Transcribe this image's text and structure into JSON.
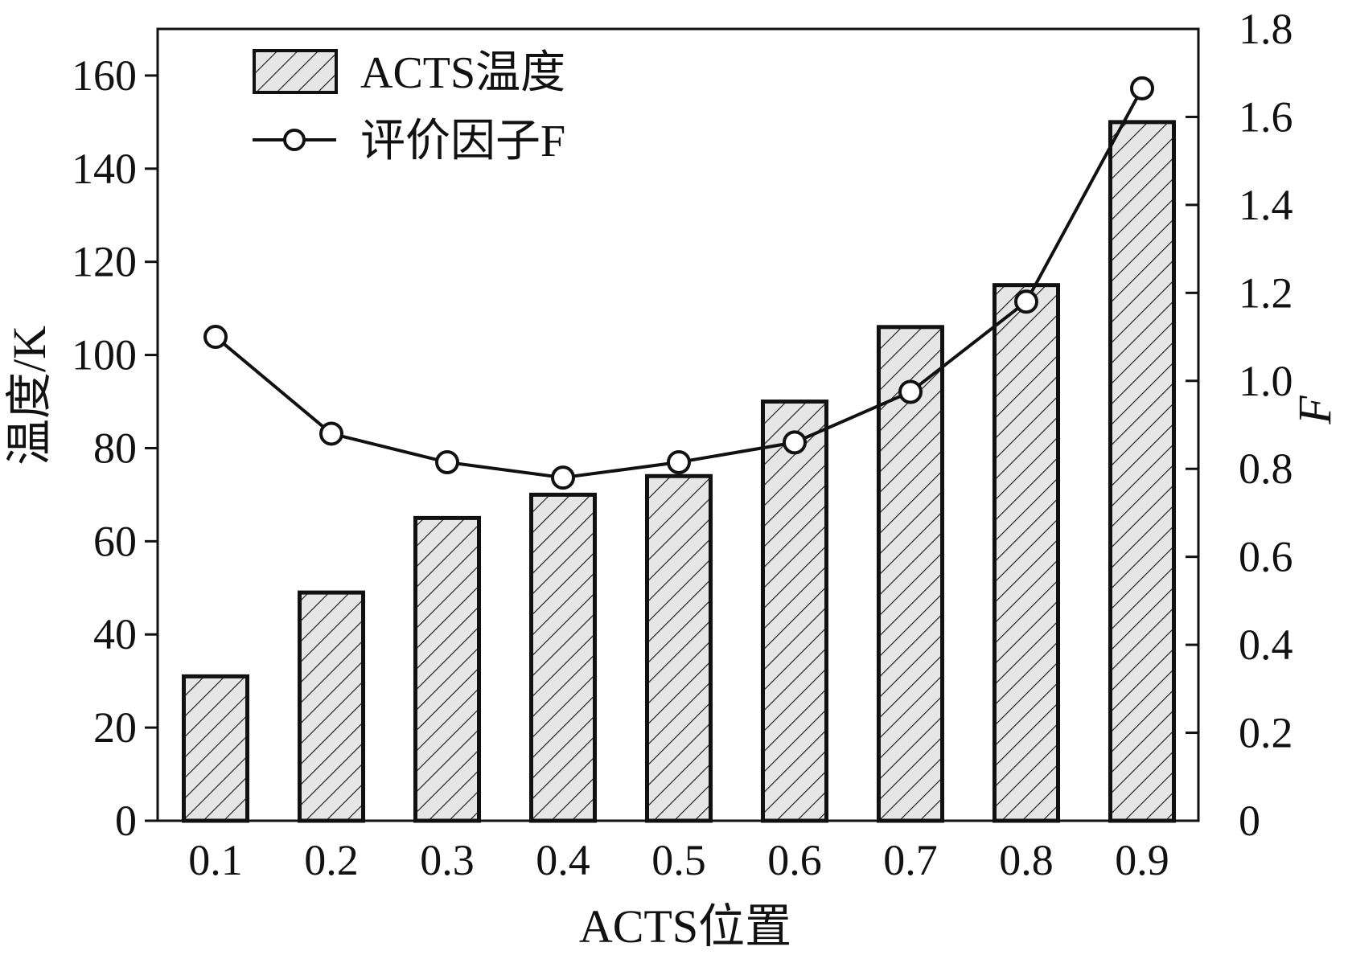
{
  "chart_data": {
    "type": "bar",
    "categories": [
      "0.1",
      "0.2",
      "0.3",
      "0.4",
      "0.5",
      "0.6",
      "0.7",
      "0.8",
      "0.9"
    ],
    "series": [
      {
        "name": "ACTS温度",
        "type": "bar",
        "axis": "left",
        "values": [
          31,
          49,
          65,
          70,
          74,
          90,
          106,
          115,
          150
        ]
      },
      {
        "name": "评价因子F",
        "type": "line",
        "axis": "right",
        "values": [
          1.1,
          0.88,
          0.815,
          0.78,
          0.815,
          0.86,
          0.975,
          1.18,
          1.665
        ]
      }
    ],
    "xlabel": "ACTS位置",
    "ylabel": "温度/K",
    "y2label": "F",
    "ylim": [
      0,
      170
    ],
    "y2lim": [
      0,
      1.8
    ],
    "yticks": [
      "0",
      "20",
      "40",
      "60",
      "80",
      "100",
      "120",
      "140",
      "160"
    ],
    "y2ticks": [
      "0",
      "0.2",
      "0.4",
      "0.6",
      "0.8",
      "1.0",
      "1.2",
      "1.4",
      "1.6",
      "1.8"
    ],
    "legend": {
      "position": "top-left",
      "entries": [
        "ACTS温度",
        "评价因子F"
      ]
    },
    "grid": false,
    "colors": {
      "bar_fill": "#e6e6e6",
      "bar_hatch": "#222222",
      "line": "#111111",
      "marker_fill": "#ffffff"
    }
  }
}
